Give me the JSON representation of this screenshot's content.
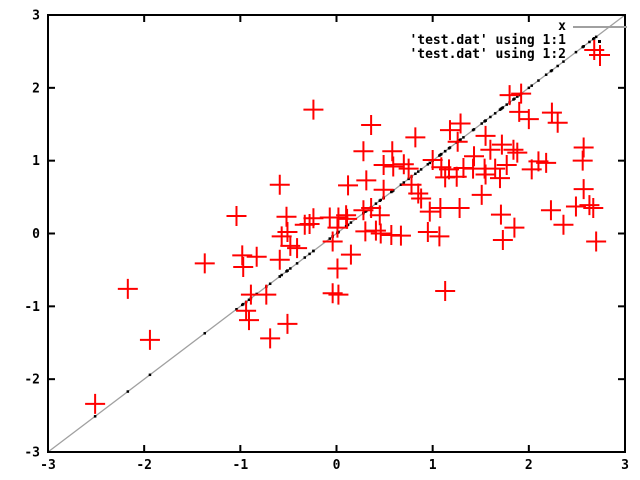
{
  "figure": {
    "background": "#ffffff",
    "frame_color": "#000000",
    "legend": [
      {
        "label": "x",
        "type": "line",
        "color": "#a0a0a0"
      },
      {
        "label": "'test.dat' using 1:1",
        "type": "dot",
        "color": "#000000"
      },
      {
        "label": "'test.dat' using 1:2",
        "type": "plus",
        "color": "#ff0000"
      }
    ]
  },
  "chart_data": {
    "type": "scatter",
    "title": "",
    "xlabel": "",
    "ylabel": "",
    "xlim": [
      -3,
      3
    ],
    "ylim": [
      -3,
      3
    ],
    "xticks": [
      -3,
      -2,
      -1,
      0,
      1,
      2,
      3
    ],
    "yticks": [
      -3,
      -2,
      -1,
      0,
      1,
      2,
      3
    ],
    "grid": false,
    "legend_position": "top-right-inside",
    "series": [
      {
        "name": "x",
        "type": "line",
        "color": "#a0a0a0",
        "points": [
          [
            -3,
            -3
          ],
          [
            3,
            3
          ]
        ]
      },
      {
        "name": "'test.dat' using 1:1",
        "type": "dots",
        "color": "#000000",
        "note": "column 1 vs itself - dots lie on the diagonal at each data x value"
      },
      {
        "name": "'test.dat' using 1:2",
        "type": "points",
        "marker": "plus",
        "color": "#ff0000",
        "points": [
          [
            -2.51,
            -2.34
          ],
          [
            -2.17,
            -0.76
          ],
          [
            -1.94,
            -1.46
          ],
          [
            -1.37,
            -0.41
          ],
          [
            -1.04,
            0.24
          ],
          [
            -0.98,
            -0.3
          ],
          [
            -0.97,
            -0.46
          ],
          [
            -0.94,
            -1.06
          ],
          [
            -0.91,
            -1.19
          ],
          [
            -0.89,
            -0.84
          ],
          [
            -0.83,
            -0.32
          ],
          [
            -0.73,
            -0.84
          ],
          [
            -0.69,
            -1.44
          ],
          [
            -0.59,
            0.67
          ],
          [
            -0.59,
            -0.36
          ],
          [
            -0.57,
            -0.04
          ],
          [
            -0.52,
            0.23
          ],
          [
            -0.51,
            0.02
          ],
          [
            -0.51,
            -1.24
          ],
          [
            -0.48,
            -0.17
          ],
          [
            -0.41,
            -0.2
          ],
          [
            -0.33,
            0.12
          ],
          [
            -0.28,
            0.13
          ],
          [
            -0.24,
            1.7
          ],
          [
            -0.24,
            0.21
          ],
          [
            -0.07,
            0.22
          ],
          [
            -0.04,
            -0.11
          ],
          [
            -0.04,
            -0.82
          ],
          [
            0.01,
            0.08
          ],
          [
            0.01,
            -0.48
          ],
          [
            0.02,
            0.22
          ],
          [
            0.02,
            -0.84
          ],
          [
            0.1,
            0.25
          ],
          [
            0.11,
            0.2
          ],
          [
            0.12,
            0.66
          ],
          [
            0.15,
            -0.29
          ],
          [
            0.28,
            1.13
          ],
          [
            0.28,
            0.32
          ],
          [
            0.3,
            0.03
          ],
          [
            0.31,
            0.73
          ],
          [
            0.36,
            1.49
          ],
          [
            0.36,
            0.35
          ],
          [
            0.41,
            0.04
          ],
          [
            0.45,
            0.25
          ],
          [
            0.46,
            0.0
          ],
          [
            0.49,
            0.94
          ],
          [
            0.49,
            0.6
          ],
          [
            0.57,
            -0.02
          ],
          [
            0.58,
            1.13
          ],
          [
            0.59,
            0.92
          ],
          [
            0.67,
            -0.03
          ],
          [
            0.7,
            0.95
          ],
          [
            0.75,
            0.89
          ],
          [
            0.78,
            0.67
          ],
          [
            0.82,
            1.32
          ],
          [
            0.85,
            0.55
          ],
          [
            0.88,
            0.48
          ],
          [
            0.95,
            0.02
          ],
          [
            0.97,
            0.3
          ],
          [
            1.0,
            1.01
          ],
          [
            1.07,
            -0.04
          ],
          [
            1.08,
            0.35
          ],
          [
            1.09,
            0.91
          ],
          [
            1.13,
            0.77
          ],
          [
            1.13,
            -0.79
          ],
          [
            1.17,
            0.88
          ],
          [
            1.18,
            1.42
          ],
          [
            1.25,
            0.78
          ],
          [
            1.26,
            1.26
          ],
          [
            1.28,
            0.35
          ],
          [
            1.29,
            1.51
          ],
          [
            1.32,
            0.9
          ],
          [
            1.42,
            0.89
          ],
          [
            1.43,
            1.06
          ],
          [
            1.51,
            0.53
          ],
          [
            1.54,
            0.89
          ],
          [
            1.55,
            1.34
          ],
          [
            1.55,
            0.81
          ],
          [
            1.6,
            1.15
          ],
          [
            1.65,
            0.89
          ],
          [
            1.7,
            0.76
          ],
          [
            1.71,
            0.26
          ],
          [
            1.72,
            1.22
          ],
          [
            1.73,
            -0.09
          ],
          [
            1.77,
            0.94
          ],
          [
            1.8,
            1.9
          ],
          [
            1.84,
            1.15
          ],
          [
            1.85,
            0.08
          ],
          [
            1.88,
            1.11
          ],
          [
            1.9,
            1.67
          ],
          [
            1.92,
            1.92
          ],
          [
            2.0,
            1.57
          ],
          [
            2.03,
            0.88
          ],
          [
            2.1,
            0.99
          ],
          [
            2.18,
            0.97
          ],
          [
            2.23,
            0.32
          ],
          [
            2.24,
            1.66
          ],
          [
            2.3,
            1.52
          ],
          [
            2.36,
            0.12
          ],
          [
            2.49,
            0.37
          ],
          [
            2.56,
            1.0
          ],
          [
            2.57,
            1.18
          ],
          [
            2.57,
            0.61
          ],
          [
            2.63,
            0.39
          ],
          [
            2.67,
            0.35
          ],
          [
            2.68,
            2.52
          ],
          [
            2.7,
            -0.11
          ]
        ]
      }
    ]
  }
}
